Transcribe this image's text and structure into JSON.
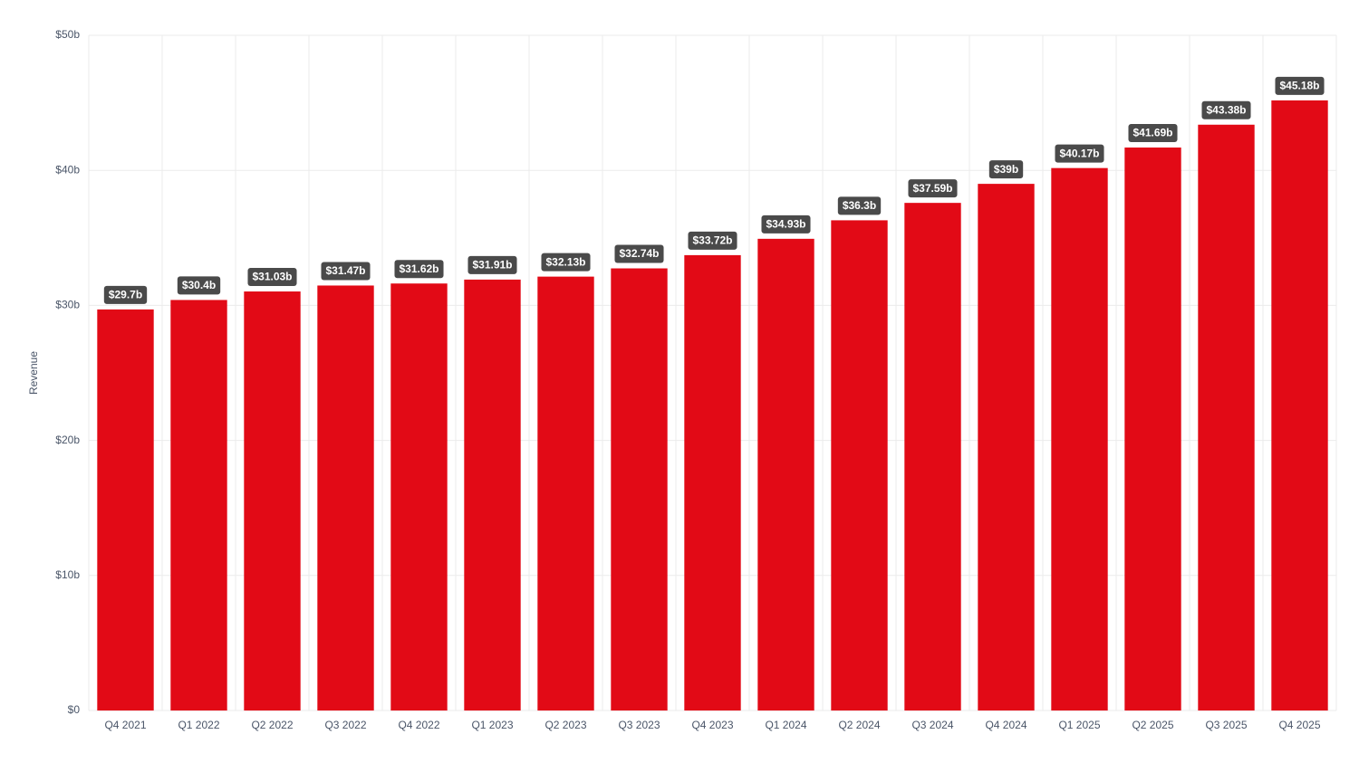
{
  "chart_data": {
    "type": "bar",
    "y_label": "Revenue",
    "categories": [
      "Q4 2021",
      "Q1 2022",
      "Q2 2022",
      "Q3 2022",
      "Q4 2022",
      "Q1 2023",
      "Q2 2023",
      "Q3 2023",
      "Q4 2023",
      "Q1 2024",
      "Q2 2024",
      "Q3 2024",
      "Q4 2024",
      "Q1 2025",
      "Q2 2025",
      "Q3 2025",
      "Q4 2025"
    ],
    "values": [
      29.7,
      30.4,
      31.03,
      31.47,
      31.62,
      31.91,
      32.13,
      32.74,
      33.72,
      34.93,
      36.3,
      37.59,
      39,
      40.17,
      41.69,
      43.38,
      45.18
    ],
    "value_labels": [
      "$29.7b",
      "$30.4b",
      "$31.03b",
      "$31.47b",
      "$31.62b",
      "$31.91b",
      "$32.13b",
      "$32.74b",
      "$33.72b",
      "$34.93b",
      "$36.3b",
      "$37.59b",
      "$39b",
      "$40.17b",
      "$41.69b",
      "$43.38b",
      "$45.18b"
    ],
    "color": "#e20a16",
    "ylim": [
      0,
      50
    ],
    "yticks": [
      {
        "value": 0,
        "label": "$0"
      },
      {
        "value": 10,
        "label": "$10b"
      },
      {
        "value": 20,
        "label": "$20b"
      },
      {
        "value": 30,
        "label": "$30b"
      },
      {
        "value": 40,
        "label": "$40b"
      },
      {
        "value": 50,
        "label": "$50b"
      }
    ],
    "grid": true
  }
}
